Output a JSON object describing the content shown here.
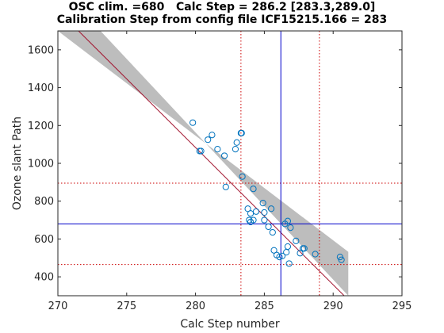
{
  "chart_data": {
    "type": "scatter",
    "title": [
      "OSC clim. =680   Calc Step = 286.2 [283.3,289.0]",
      "Calibration Step from config file ICF15215.166 = 283"
    ],
    "xlabel": "Calc Step number",
    "ylabel": "Ozone slant Path",
    "xlim": [
      270,
      295
    ],
    "ylim": [
      300,
      1700
    ],
    "xticks": [
      270,
      275,
      280,
      285,
      290,
      295
    ],
    "yticks": [
      400,
      600,
      800,
      1000,
      1200,
      1400,
      1600
    ],
    "grid": false,
    "colors": {
      "points": "#0072bd",
      "fit_line": "#a2142f",
      "band": "#bdbdbd",
      "reference_lines": "#0000cc",
      "bound_lines": "#cc0000"
    },
    "band": {
      "upper": [
        [
          270,
          1700
        ],
        [
          291.1,
          532
        ]
      ],
      "lower": [
        [
          273.1,
          1700
        ],
        [
          291.1,
          300
        ]
      ]
    },
    "fit_line": [
      [
        271.5,
        1700
      ],
      [
        290.8,
        300
      ]
    ],
    "reference_lines": {
      "x": 286.2,
      "y": 680
    },
    "bound_lines": {
      "x": [
        283.3,
        289.0
      ],
      "y": [
        465,
        895
      ]
    },
    "points": [
      {
        "x": 279.8,
        "y": 1215
      },
      {
        "x": 280.3,
        "y": 1065
      },
      {
        "x": 280.4,
        "y": 1065
      },
      {
        "x": 280.9,
        "y": 1125
      },
      {
        "x": 281.2,
        "y": 1150
      },
      {
        "x": 281.6,
        "y": 1075
      },
      {
        "x": 282.1,
        "y": 1040
      },
      {
        "x": 282.2,
        "y": 875
      },
      {
        "x": 282.9,
        "y": 1075
      },
      {
        "x": 283.0,
        "y": 1110
      },
      {
        "x": 283.3,
        "y": 1160
      },
      {
        "x": 283.35,
        "y": 1160
      },
      {
        "x": 283.4,
        "y": 930
      },
      {
        "x": 283.8,
        "y": 760
      },
      {
        "x": 283.9,
        "y": 700
      },
      {
        "x": 284.0,
        "y": 690
      },
      {
        "x": 284.0,
        "y": 735
      },
      {
        "x": 284.2,
        "y": 700
      },
      {
        "x": 284.2,
        "y": 865
      },
      {
        "x": 284.4,
        "y": 745
      },
      {
        "x": 284.9,
        "y": 790
      },
      {
        "x": 285.0,
        "y": 700
      },
      {
        "x": 285.0,
        "y": 740
      },
      {
        "x": 285.3,
        "y": 665
      },
      {
        "x": 285.5,
        "y": 760
      },
      {
        "x": 285.6,
        "y": 635
      },
      {
        "x": 285.7,
        "y": 540
      },
      {
        "x": 285.9,
        "y": 515
      },
      {
        "x": 286.1,
        "y": 505
      },
      {
        "x": 286.3,
        "y": 510
      },
      {
        "x": 286.5,
        "y": 680
      },
      {
        "x": 286.6,
        "y": 530
      },
      {
        "x": 286.7,
        "y": 560
      },
      {
        "x": 286.7,
        "y": 695
      },
      {
        "x": 286.8,
        "y": 470
      },
      {
        "x": 286.9,
        "y": 660
      },
      {
        "x": 287.3,
        "y": 590
      },
      {
        "x": 287.6,
        "y": 525
      },
      {
        "x": 287.8,
        "y": 550
      },
      {
        "x": 287.9,
        "y": 550
      },
      {
        "x": 288.7,
        "y": 520
      },
      {
        "x": 290.5,
        "y": 505
      },
      {
        "x": 290.6,
        "y": 490
      }
    ]
  }
}
